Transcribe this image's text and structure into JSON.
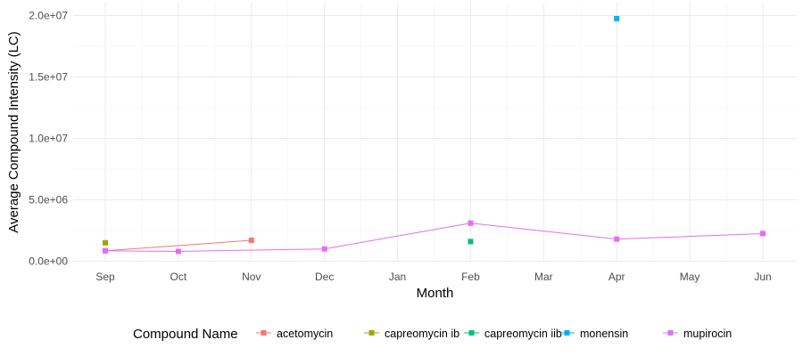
{
  "chart_data": {
    "type": "line",
    "title": "",
    "xlabel": "Month",
    "ylabel": "Average Compound Intensity (LC)",
    "categories": [
      "Sep",
      "Oct",
      "Nov",
      "Dec",
      "Jan",
      "Feb",
      "Mar",
      "Apr",
      "May",
      "Jun"
    ],
    "ylim": [
      0,
      20000000
    ],
    "yticks": [
      0,
      5000000,
      10000000,
      15000000,
      20000000
    ],
    "ytick_labels": [
      "0.0e+00",
      "5.0e+06",
      "1.0e+07",
      "1.5e+07",
      "2.0e+07"
    ],
    "grid": true,
    "legend_title": "Compound Name",
    "legend_position": "bottom",
    "series": [
      {
        "name": "acetomycin",
        "color": "#F8766D",
        "points": [
          {
            "x": "Sep",
            "y": 850000
          },
          {
            "x": "Nov",
            "y": 1700000
          }
        ]
      },
      {
        "name": "capreomycin ib",
        "color": "#A3A500",
        "points": [
          {
            "x": "Sep",
            "y": 1500000
          }
        ]
      },
      {
        "name": "capreomycin iib",
        "color": "#00BF7D",
        "points": [
          {
            "x": "Feb",
            "y": 1600000
          }
        ]
      },
      {
        "name": "monensin",
        "color": "#00B0F6",
        "points": [
          {
            "x": "Apr",
            "y": 19750000
          }
        ]
      },
      {
        "name": "mupirocin",
        "color": "#E76BF3",
        "points": [
          {
            "x": "Sep",
            "y": 850000
          },
          {
            "x": "Oct",
            "y": 800000
          },
          {
            "x": "Dec",
            "y": 1000000
          },
          {
            "x": "Feb",
            "y": 3100000
          },
          {
            "x": "Apr",
            "y": 1800000
          },
          {
            "x": "Jun",
            "y": 2250000
          }
        ]
      }
    ]
  }
}
